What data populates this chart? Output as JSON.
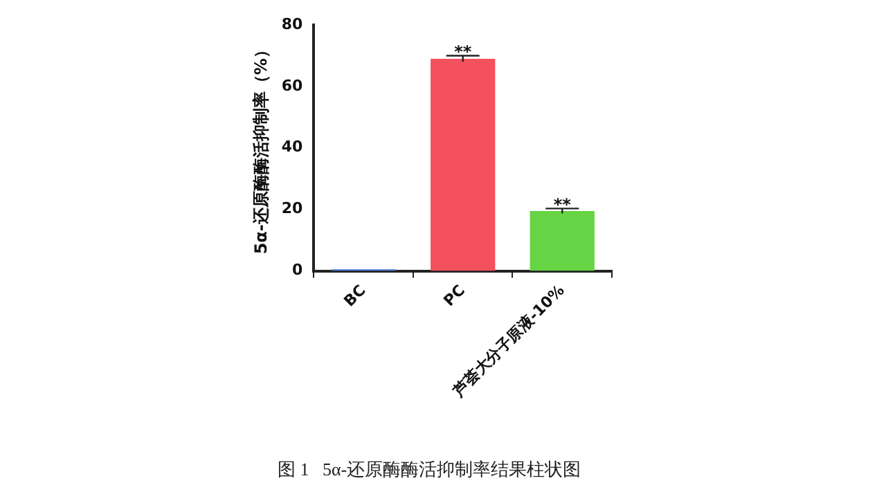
{
  "chart_data": {
    "type": "bar",
    "title": "图 1   5α-还原酶酶活抑制率结果柱状图",
    "ylabel": "5α-还原酶酶活抑制率（%）",
    "categories": [
      "BC",
      "PC",
      "芦荟大分子原液-10%"
    ],
    "values": [
      0.5,
      69,
      19.5
    ],
    "colors": [
      "#4a7bd8",
      "#f4515f",
      "#66d444"
    ],
    "errors": [
      null,
      1,
      0.8
    ],
    "ylim": [
      0,
      80
    ],
    "yticks": [
      0,
      20,
      40,
      60,
      80
    ],
    "grid": false,
    "annotations": [
      {
        "text": "**",
        "x": "PC",
        "y": 70
      },
      {
        "text": "**",
        "x": "芦荟大分子原液-10%",
        "y": 20.3
      }
    ]
  }
}
